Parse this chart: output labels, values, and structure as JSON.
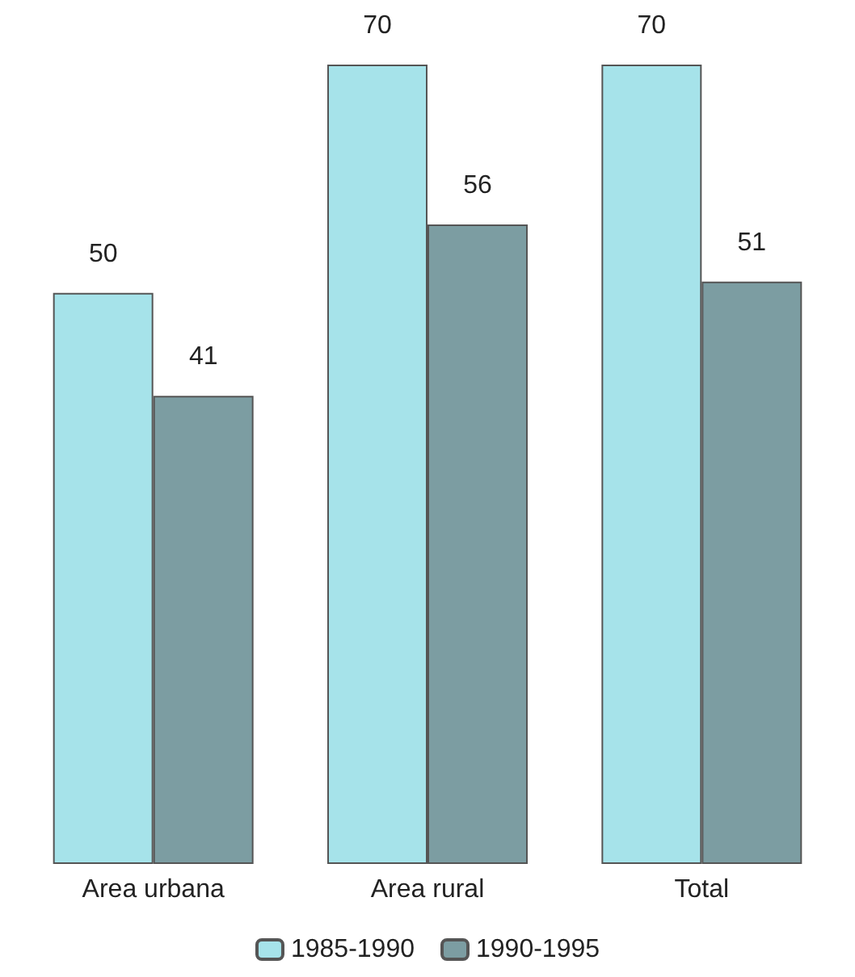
{
  "chart_data": {
    "type": "bar",
    "categories": [
      "Area urbana",
      "Area rural",
      "Total"
    ],
    "series": [
      {
        "name": "1985-1990",
        "color": "#a6e3ea",
        "values": [
          50,
          70,
          70
        ]
      },
      {
        "name": "1990-1995",
        "color": "#7c9da2",
        "values": [
          41,
          56,
          51
        ]
      }
    ],
    "data_labels": true,
    "legend": "bottom"
  }
}
